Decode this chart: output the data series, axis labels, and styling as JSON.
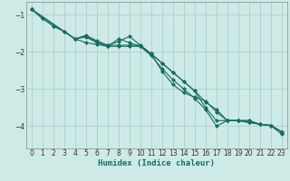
{
  "xlabel": "Humidex (Indice chaleur)",
  "background_color": "#ceeae6",
  "grid_color": "#aed4cf",
  "line_color": "#1a6b60",
  "xlim": [
    -0.5,
    23.5
  ],
  "ylim": [
    -4.6,
    -0.65
  ],
  "xticks": [
    0,
    1,
    2,
    3,
    4,
    5,
    6,
    7,
    8,
    9,
    10,
    11,
    12,
    13,
    14,
    15,
    16,
    17,
    18,
    19,
    20,
    21,
    22,
    23
  ],
  "yticks": [
    -4,
    -3,
    -2,
    -1
  ],
  "s1_x": [
    0,
    1,
    2,
    3,
    4,
    5,
    6,
    7,
    8,
    9,
    10,
    11,
    12,
    13,
    14,
    15,
    16,
    17,
    18,
    19,
    20,
    21,
    22,
    23
  ],
  "s1_y": [
    -0.85,
    -1.1,
    -1.3,
    -1.45,
    -1.65,
    -1.75,
    -1.8,
    -1.85,
    -1.85,
    -1.85,
    -1.85,
    -2.05,
    -2.3,
    -2.55,
    -2.8,
    -3.05,
    -3.5,
    -3.85,
    -3.85,
    -3.85,
    -3.9,
    -3.95,
    -3.98,
    -4.15
  ],
  "s2_x": [
    0,
    4,
    5,
    6,
    7,
    8,
    9,
    10,
    11,
    12,
    13,
    14,
    15,
    16,
    17,
    18,
    19,
    20,
    21,
    22,
    23
  ],
  "s2_y": [
    -0.85,
    -1.65,
    -1.6,
    -1.75,
    -1.85,
    -1.65,
    -1.75,
    -1.85,
    -2.1,
    -2.45,
    -2.75,
    -3.0,
    -3.25,
    -3.55,
    -4.0,
    -3.85,
    -3.85,
    -3.85,
    -3.95,
    -3.98,
    -4.15
  ],
  "s3_x": [
    0,
    1,
    2,
    3,
    4,
    5,
    6,
    7,
    8,
    9,
    10,
    11,
    12,
    13,
    14,
    15,
    16,
    17,
    18,
    19,
    20,
    21,
    22,
    23
  ],
  "s3_y": [
    -0.85,
    -1.1,
    -1.3,
    -1.45,
    -1.65,
    -1.55,
    -1.7,
    -1.82,
    -1.72,
    -1.58,
    -1.82,
    -2.05,
    -2.3,
    -2.55,
    -2.8,
    -3.05,
    -3.35,
    -3.55,
    -3.85,
    -3.85,
    -3.9,
    -3.95,
    -3.98,
    -4.22
  ],
  "s4_x": [
    0,
    4,
    5,
    6,
    7,
    8,
    9,
    10,
    11,
    12,
    13,
    14,
    15,
    16,
    17,
    18,
    19,
    20,
    21,
    22,
    23
  ],
  "s4_y": [
    -0.85,
    -1.65,
    -1.58,
    -1.72,
    -1.82,
    -1.82,
    -1.82,
    -1.82,
    -2.05,
    -2.52,
    -2.88,
    -3.1,
    -3.22,
    -3.32,
    -3.62,
    -3.85,
    -3.85,
    -3.85,
    -3.95,
    -3.98,
    -4.15
  ]
}
